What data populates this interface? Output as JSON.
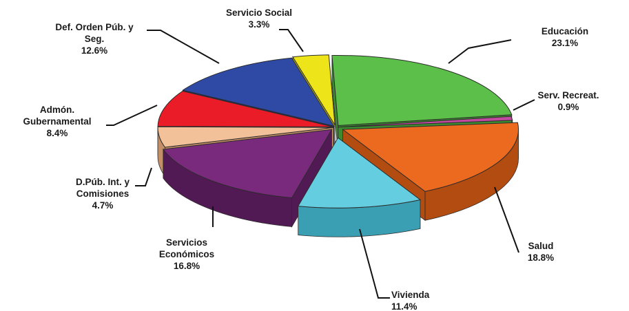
{
  "chart_data": {
    "type": "pie",
    "title": "",
    "units": "%",
    "style": "3d-exploded",
    "slices": [
      {
        "key": "educacion",
        "label_lines": [
          "Educación",
          "23.1%"
        ],
        "name": "Educación",
        "value": 23.1,
        "color": "#5cbf4a",
        "dark": "#3d8a31"
      },
      {
        "key": "serv-recreat",
        "label_lines": [
          "Serv. Recreat.",
          "0.9%"
        ],
        "name": "Serv. Recreat.",
        "value": 0.9,
        "color": "#c04a9e",
        "dark": "#8a3372"
      },
      {
        "key": "salud",
        "label_lines": [
          "Salud",
          "18.8%"
        ],
        "name": "Salud",
        "value": 18.8,
        "color": "#ec6a1f",
        "dark": "#b34c10"
      },
      {
        "key": "vivienda",
        "label_lines": [
          "Vivienda",
          "11.4%"
        ],
        "name": "Vivienda",
        "value": 11.4,
        "color": "#65cde0",
        "dark": "#3a9fb2"
      },
      {
        "key": "servicios-economicos",
        "label_lines": [
          "Servicios",
          "Económicos",
          "16.8%"
        ],
        "name": "Servicios Económicos",
        "value": 16.8,
        "color": "#792a7c",
        "dark": "#521a55"
      },
      {
        "key": "dpub-int",
        "label_lines": [
          "D.Púb. Int. y",
          "Comisiones",
          "4.7%"
        ],
        "name": "D.Púb. Int. y Comisiones",
        "value": 4.7,
        "color": "#f2c19a",
        "dark": "#c48f66"
      },
      {
        "key": "admon-gubernamental",
        "label_lines": [
          "Admón.",
          "Gubernamental",
          "8.4%"
        ],
        "name": "Admón. Gubernamental",
        "value": 8.4,
        "color": "#ea1c27",
        "dark": "#a81119"
      },
      {
        "key": "def-orden-pub",
        "label_lines": [
          "Def. Orden Púb. y",
          "Seg.",
          "12.6%"
        ],
        "name": "Def. Orden Púb. y Seg.",
        "value": 12.6,
        "color": "#2f4aa5",
        "dark": "#1f3275"
      },
      {
        "key": "servicio-social",
        "label_lines": [
          "Servicio Social",
          "3.3%"
        ],
        "name": "Servicio Social",
        "value": 3.3,
        "color": "#eee41a",
        "dark": "#b3aa0c"
      }
    ]
  }
}
